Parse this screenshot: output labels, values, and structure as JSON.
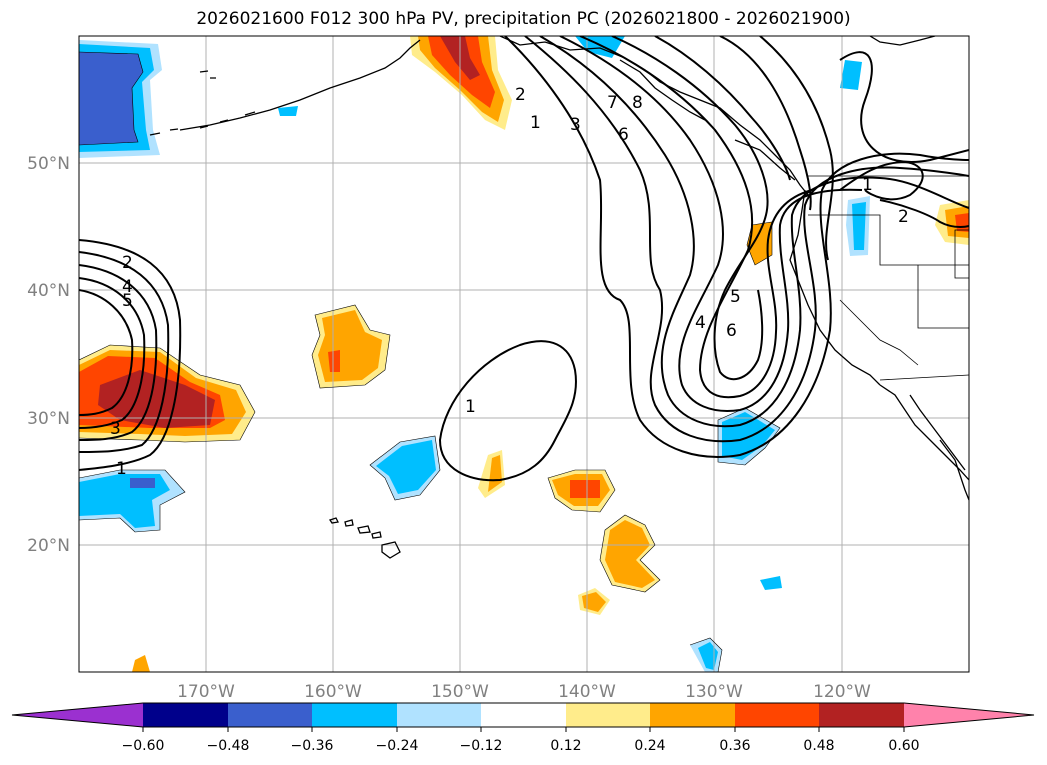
{
  "title": "2026021600 F012 300 hPa PV, precipitation PC (2026021800 - 2026021900)",
  "map": {
    "lat_labels": [
      "50°N",
      "40°N",
      "30°N",
      "20°N"
    ],
    "lon_labels": [
      "170°W",
      "160°W",
      "150°W",
      "140°W",
      "130°W",
      "120°W"
    ],
    "lon_range": [
      -180,
      -110
    ],
    "lat_range": [
      10,
      60
    ],
    "gridlines": true
  },
  "contour_labels": [
    "2",
    "1",
    "3",
    "7",
    "8",
    "6",
    "1",
    "2",
    "2",
    "4",
    "5",
    "3",
    "1",
    "1",
    "5",
    "4",
    "6"
  ],
  "colorbar": {
    "colors": [
      "#9b30d0",
      "#00008b",
      "#3a5fcd",
      "#00bfff",
      "#b0e2ff",
      "#ffffff",
      "#ffec8b",
      "#ffa500",
      "#ff4500",
      "#b22222",
      "#ff82ab"
    ],
    "ticks": [
      "−0.60",
      "−0.48",
      "−0.36",
      "−0.24",
      "−0.12",
      "0.12",
      "0.24",
      "0.36",
      "0.48",
      "0.60"
    ],
    "extend": "both"
  }
}
